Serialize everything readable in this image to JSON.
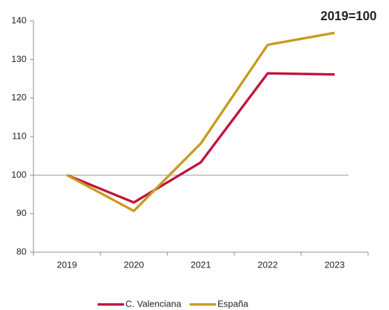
{
  "chart_data": {
    "type": "line",
    "annotation": "2019=100",
    "categories": [
      "2019",
      "2020",
      "2021",
      "2022",
      "2023"
    ],
    "series": [
      {
        "name": "C. Valenciana",
        "color": "#c0143c",
        "values": [
          100,
          92.9,
          103.3,
          126.4,
          126.1
        ]
      },
      {
        "name": "España",
        "color": "#c99a1e",
        "values": [
          100,
          90.7,
          108.2,
          133.8,
          136.9
        ]
      }
    ],
    "ylim": [
      80,
      140
    ],
    "yticks": [
      80,
      90,
      100,
      110,
      120,
      130,
      140
    ],
    "reference_line": 100,
    "legend": "bottom"
  }
}
